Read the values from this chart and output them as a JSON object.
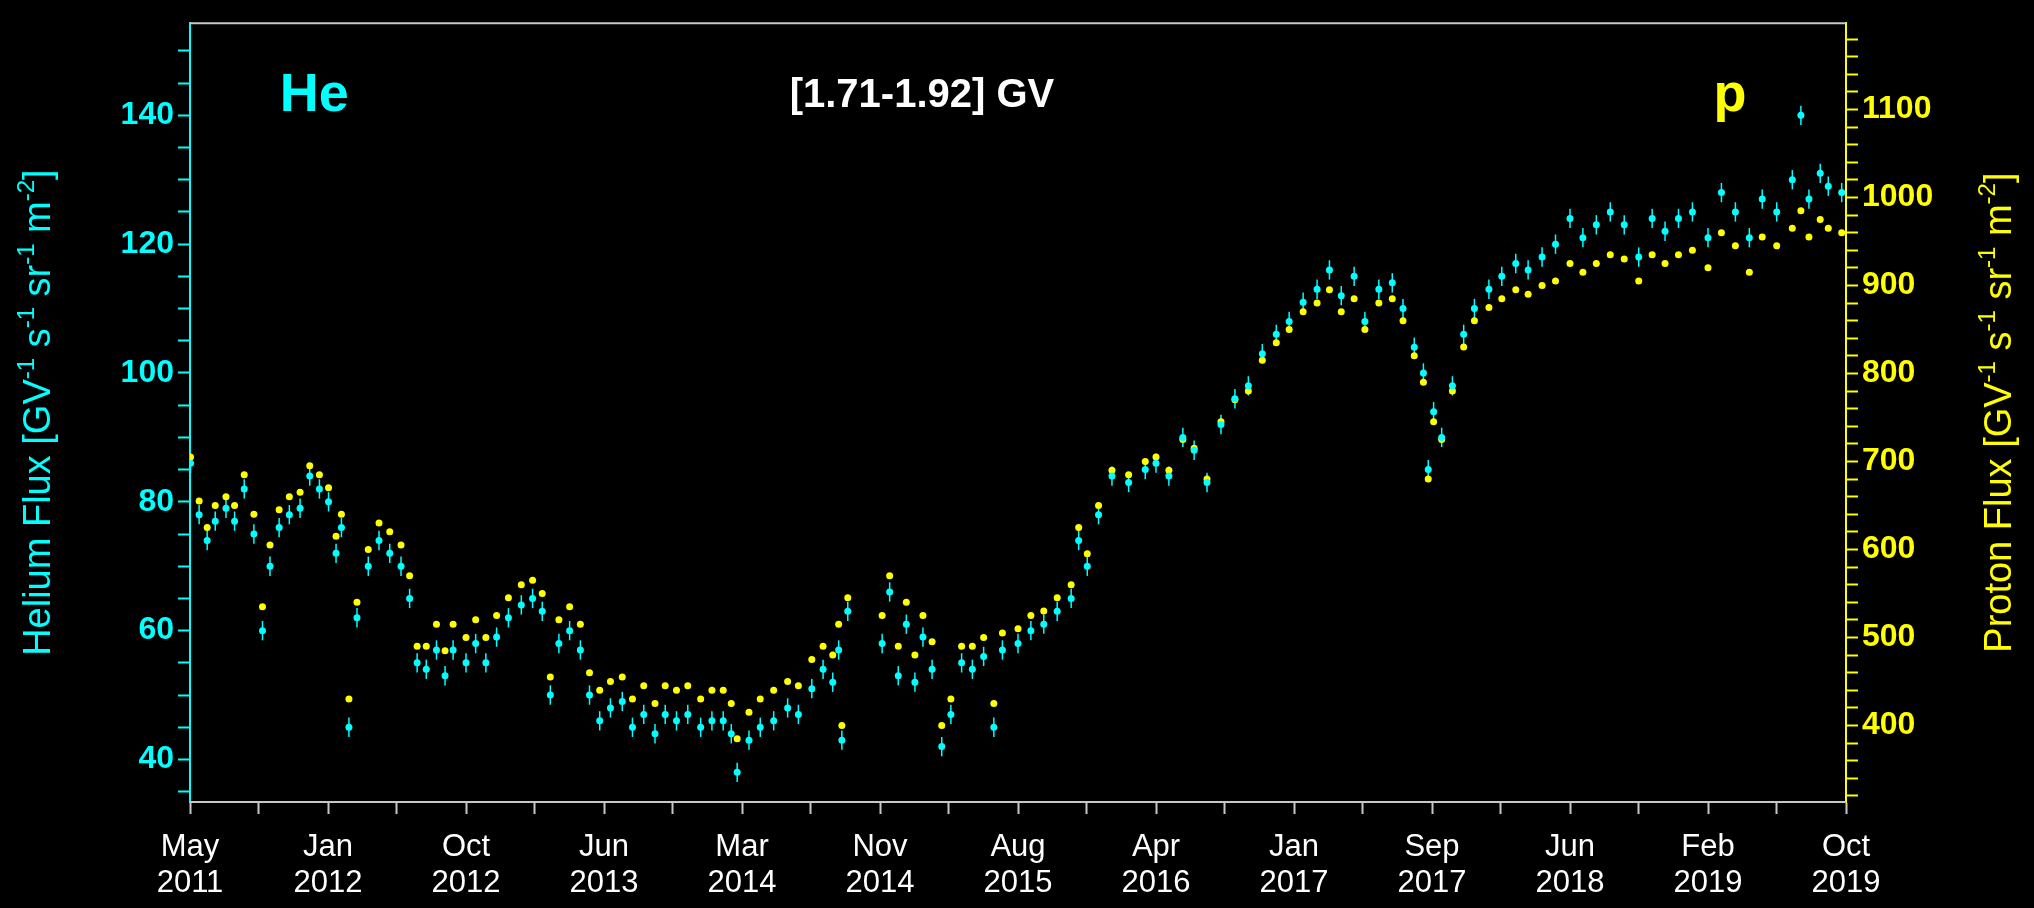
{
  "chart_data": {
    "type": "scatter",
    "title": "[1.71-1.92] GV",
    "ylabel": "Helium Flux [GV$^{-1}$ s$^{-1}$ sr$^{-1}$ m$^{-2}$]",
    "y2label": "Proton Flux [GV$^{-1}$ s$^{-1}$ sr$^{-1}$ m$^{-2}$]",
    "marker": "circle",
    "xlim": [
      "2011-05-19",
      "2019-10-28"
    ],
    "xticks": [
      {
        "value": "2011-05-19",
        "label": "May 2011"
      },
      {
        "value": "2011-09-24",
        "label": null
      },
      {
        "value": "2012-01-31",
        "label": "Jan 2012"
      },
      {
        "value": "2012-06-07",
        "label": null
      },
      {
        "value": "2012-10-14",
        "label": "Oct 2012"
      },
      {
        "value": "2013-02-19",
        "label": null
      },
      {
        "value": "2013-06-28",
        "label": "Jun 2013"
      },
      {
        "value": "2013-11-03",
        "label": null
      },
      {
        "value": "2014-03-12",
        "label": "Mar 2014"
      },
      {
        "value": "2014-07-18",
        "label": null
      },
      {
        "value": "2014-11-24",
        "label": "Nov 2014"
      },
      {
        "value": "2015-04-01",
        "label": null
      },
      {
        "value": "2015-08-08",
        "label": "Aug 2015"
      },
      {
        "value": "2015-12-14",
        "label": null
      },
      {
        "value": "2016-04-21",
        "label": "Apr 2016"
      },
      {
        "value": "2016-08-27",
        "label": null
      },
      {
        "value": "2017-01-03",
        "label": "Jan 2017"
      },
      {
        "value": "2017-05-11",
        "label": null
      },
      {
        "value": "2017-09-17",
        "label": "Sep 2017"
      },
      {
        "value": "2018-01-23",
        "label": null
      },
      {
        "value": "2018-06-01",
        "label": "Jun 2018"
      },
      {
        "value": "2018-10-07",
        "label": null
      },
      {
        "value": "2019-02-13",
        "label": "Feb 2019"
      },
      {
        "value": "2019-06-21",
        "label": null
      },
      {
        "value": "2019-10-28",
        "label": "Oct 2019"
      }
    ],
    "ylim": [
      33.4,
      154.3
    ],
    "yticks": [
      {
        "value": 35,
        "label": null
      },
      40,
      {
        "value": 45,
        "label": null
      },
      {
        "value": 50,
        "label": null
      },
      {
        "value": 55,
        "label": null
      },
      60,
      {
        "value": 65,
        "label": null
      },
      {
        "value": 70,
        "label": null
      },
      {
        "value": 75,
        "label": null
      },
      80,
      {
        "value": 85,
        "label": null
      },
      {
        "value": 90,
        "label": null
      },
      {
        "value": 95,
        "label": null
      },
      100,
      {
        "value": 105,
        "label": null
      },
      {
        "value": 110,
        "label": null
      },
      {
        "value": 115,
        "label": null
      },
      120,
      {
        "value": 125,
        "label": null
      },
      {
        "value": 130,
        "label": null
      },
      {
        "value": 135,
        "label": null
      },
      140,
      {
        "value": 145,
        "label": null
      },
      {
        "value": 150,
        "label": null
      }
    ],
    "y2lim": [
      313,
      1198
    ],
    "y2ticks": [
      {
        "value": 320,
        "label": null
      },
      {
        "value": 340,
        "label": null
      },
      {
        "value": 360,
        "label": null
      },
      {
        "value": 380,
        "label": null
      },
      400,
      {
        "value": 420,
        "label": null
      },
      {
        "value": 440,
        "label": null
      },
      {
        "value": 460,
        "label": null
      },
      {
        "value": 480,
        "label": null
      },
      500,
      {
        "value": 520,
        "label": null
      },
      {
        "value": 540,
        "label": null
      },
      {
        "value": 560,
        "label": null
      },
      {
        "value": 580,
        "label": null
      },
      600,
      {
        "value": 620,
        "label": null
      },
      {
        "value": 640,
        "label": null
      },
      {
        "value": 660,
        "label": null
      },
      {
        "value": 680,
        "label": null
      },
      700,
      {
        "value": 720,
        "label": null
      },
      {
        "value": 740,
        "label": null
      },
      {
        "value": 760,
        "label": null
      },
      {
        "value": 780,
        "label": null
      },
      800,
      {
        "value": 820,
        "label": null
      },
      {
        "value": 840,
        "label": null
      },
      {
        "value": 860,
        "label": null
      },
      {
        "value": 880,
        "label": null
      },
      900,
      {
        "value": 920,
        "label": null
      },
      {
        "value": 940,
        "label": null
      },
      {
        "value": 960,
        "label": null
      },
      {
        "value": 980,
        "label": null
      },
      1000,
      {
        "value": 1020,
        "label": null
      },
      {
        "value": 1040,
        "label": null
      },
      {
        "value": 1060,
        "label": null
      },
      {
        "value": 1080,
        "label": null
      },
      1100,
      {
        "value": 1120,
        "label": null
      },
      {
        "value": 1140,
        "label": null
      },
      {
        "value": 1160,
        "label": null
      },
      {
        "value": 1180,
        "label": null
      }
    ],
    "x": [
      "2011-05-20",
      "2011-06-05",
      "2011-06-20",
      "2011-07-05",
      "2011-07-25",
      "2011-08-10",
      "2011-08-28",
      "2011-09-15",
      "2011-10-01",
      "2011-10-15",
      "2011-11-01",
      "2011-11-20",
      "2011-12-10",
      "2011-12-28",
      "2012-01-15",
      "2012-02-01",
      "2012-02-15",
      "2012-02-25",
      "2012-03-10",
      "2012-03-25",
      "2012-04-15",
      "2012-05-05",
      "2012-05-25",
      "2012-06-15",
      "2012-07-01",
      "2012-07-15",
      "2012-08-01",
      "2012-08-20",
      "2012-09-05",
      "2012-09-20",
      "2012-10-14",
      "2012-11-01",
      "2012-11-20",
      "2012-12-10",
      "2013-01-01",
      "2013-01-25",
      "2013-02-15",
      "2013-03-05",
      "2013-03-20",
      "2013-04-05",
      "2013-04-25",
      "2013-05-15",
      "2013-06-01",
      "2013-06-20",
      "2013-07-10",
      "2013-08-01",
      "2013-08-20",
      "2013-09-10",
      "2013-10-01",
      "2013-10-20",
      "2013-11-10",
      "2013-12-01",
      "2013-12-25",
      "2014-01-15",
      "2014-02-05",
      "2014-02-20",
      "2014-03-03",
      "2014-03-25",
      "2014-04-15",
      "2014-05-10",
      "2014-06-05",
      "2014-06-25",
      "2014-07-20",
      "2014-08-10",
      "2014-08-28",
      "2014-09-08",
      "2014-09-14",
      "2014-09-25",
      "2014-11-28",
      "2014-12-12",
      "2014-12-28",
      "2015-01-12",
      "2015-01-28",
      "2015-02-12",
      "2015-03-01",
      "2015-03-19",
      "2015-04-05",
      "2015-04-25",
      "2015-05-15",
      "2015-06-05",
      "2015-06-24",
      "2015-07-10",
      "2015-08-08",
      "2015-09-01",
      "2015-09-25",
      "2015-10-20",
      "2015-11-15",
      "2015-11-29",
      "2015-12-15",
      "2016-01-05",
      "2016-01-30",
      "2016-03-01",
      "2016-04-01",
      "2016-04-21",
      "2016-05-15",
      "2016-06-10",
      "2016-07-01",
      "2016-07-25",
      "2016-08-20",
      "2016-09-15",
      "2016-10-10",
      "2016-11-05",
      "2016-12-01",
      "2016-12-25",
      "2017-01-20",
      "2017-02-15",
      "2017-03-10",
      "2017-04-01",
      "2017-04-25",
      "2017-05-15",
      "2017-06-10",
      "2017-07-05",
      "2017-07-25",
      "2017-08-15",
      "2017-09-01",
      "2017-09-10",
      "2017-09-20",
      "2017-10-05",
      "2017-10-25",
      "2017-11-15",
      "2017-12-05",
      "2018-01-01",
      "2018-01-25",
      "2018-02-20",
      "2018-03-15",
      "2018-04-10",
      "2018-05-05",
      "2018-06-01",
      "2018-06-25",
      "2018-07-20",
      "2018-08-15",
      "2018-09-10",
      "2018-10-07",
      "2018-11-01",
      "2018-11-25",
      "2018-12-20",
      "2019-01-15",
      "2019-02-13",
      "2019-03-10",
      "2019-04-05",
      "2019-05-01",
      "2019-05-25",
      "2019-06-21",
      "2019-07-20",
      "2019-08-05",
      "2019-08-20",
      "2019-09-10",
      "2019-09-25",
      "2019-10-20"
    ],
    "series": [
      {
        "name": "He",
        "color": "#00ffff",
        "values": [
          86,
          78,
          74,
          77,
          79,
          77,
          82,
          75,
          60,
          70,
          76,
          78,
          79,
          84,
          82,
          80,
          72,
          76,
          45,
          62,
          70,
          74,
          72,
          70,
          65,
          55,
          54,
          57,
          53,
          57,
          55,
          58,
          55,
          59,
          62,
          64,
          65,
          63,
          50,
          58,
          60,
          57,
          50,
          46,
          48,
          49,
          45,
          47,
          44,
          47,
          46,
          47,
          45,
          46,
          46,
          44,
          38,
          43,
          45,
          46,
          48,
          47,
          51,
          54,
          52,
          57,
          43,
          63,
          58,
          66,
          53,
          61,
          52,
          59,
          54,
          42,
          47,
          55,
          54,
          56,
          45,
          57,
          58,
          60,
          61,
          63,
          65,
          74,
          70,
          78,
          84,
          83,
          85,
          86,
          84,
          90,
          88,
          83,
          92,
          96,
          98,
          103,
          106,
          108,
          111,
          113,
          116,
          112,
          115,
          108,
          113,
          114,
          110,
          104,
          100,
          85,
          94,
          90,
          98,
          106,
          110,
          113,
          115,
          117,
          116,
          118,
          120,
          124,
          121,
          123,
          125,
          123,
          118,
          124,
          122,
          124,
          125,
          121,
          128,
          125,
          121,
          127,
          125,
          130,
          140,
          127,
          131,
          129,
          128
        ],
        "errors": [
          1.5,
          1.5,
          1.5,
          1.5,
          1.5,
          1.5,
          1.5,
          1.5,
          1.5,
          1.5,
          1.5,
          1.5,
          1.5,
          1.5,
          1.5,
          1.5,
          1.5,
          1.5,
          1.5,
          1.5,
          1.5,
          1.5,
          1.5,
          1.5,
          1.5,
          1.5,
          1.5,
          1.5,
          1.5,
          1.5,
          1.5,
          1.5,
          1.5,
          1.5,
          1.5,
          1.5,
          1.5,
          1.5,
          1.5,
          1.5,
          1.5,
          1.5,
          1.5,
          1.5,
          1.5,
          1.5,
          1.5,
          1.5,
          1.5,
          1.5,
          1.5,
          1.5,
          1.5,
          1.5,
          1.5,
          1.5,
          1.5,
          1.5,
          1.5,
          1.5,
          1.5,
          1.5,
          1.5,
          1.5,
          1.5,
          1.5,
          1.5,
          1.5,
          1.5,
          1.5,
          1.5,
          1.5,
          1.5,
          1.5,
          1.5,
          1.5,
          1.5,
          1.5,
          1.5,
          1.5,
          1.5,
          1.5,
          1.5,
          1.5,
          1.5,
          1.5,
          1.5,
          1.5,
          1.5,
          1.5,
          1.5,
          1.5,
          1.5,
          1.5,
          1.5,
          1.5,
          1.5,
          1.5,
          1.5,
          1.5,
          1.5,
          1.5,
          1.5,
          1.5,
          1.5,
          1.5,
          1.5,
          1.5,
          1.5,
          1.5,
          1.5,
          1.5,
          1.5,
          1.5,
          1.5,
          1.5,
          1.5,
          1.5,
          1.5,
          1.5,
          1.5,
          1.5,
          1.5,
          1.5,
          1.5,
          1.5,
          1.5,
          1.5,
          1.5,
          1.5,
          1.5,
          1.5,
          1.5,
          1.5,
          1.5,
          1.5,
          1.5,
          1.5,
          1.5,
          1.5,
          1.5,
          1.5,
          1.5,
          1.5,
          1.5,
          1.5,
          1.5,
          1.5,
          1.5
        ]
      },
      {
        "name": "p",
        "color": "#ffff00",
        "axis": "y2",
        "values": [
          705,
          655,
          625,
          650,
          660,
          650,
          685,
          640,
          535,
          605,
          645,
          660,
          665,
          695,
          685,
          670,
          615,
          640,
          430,
          540,
          600,
          630,
          620,
          605,
          570,
          490,
          490,
          515,
          485,
          515,
          500,
          520,
          500,
          525,
          545,
          560,
          565,
          550,
          455,
          520,
          535,
          515,
          460,
          440,
          450,
          455,
          430,
          445,
          425,
          445,
          440,
          445,
          430,
          440,
          440,
          425,
          385,
          415,
          430,
          440,
          450,
          445,
          475,
          490,
          480,
          515,
          400,
          545,
          525,
          570,
          490,
          540,
          480,
          525,
          495,
          400,
          430,
          490,
          490,
          500,
          425,
          505,
          510,
          525,
          530,
          545,
          560,
          625,
          595,
          650,
          690,
          685,
          700,
          705,
          690,
          725,
          715,
          680,
          745,
          770,
          780,
          815,
          835,
          850,
          870,
          880,
          895,
          870,
          885,
          850,
          880,
          885,
          860,
          820,
          790,
          680,
          745,
          725,
          780,
          830,
          860,
          875,
          885,
          895,
          890,
          900,
          905,
          925,
          915,
          925,
          935,
          930,
          905,
          935,
          925,
          935,
          940,
          920,
          960,
          945,
          915,
          955,
          945,
          965,
          985,
          955,
          975,
          965,
          960
        ]
      }
    ]
  }
}
